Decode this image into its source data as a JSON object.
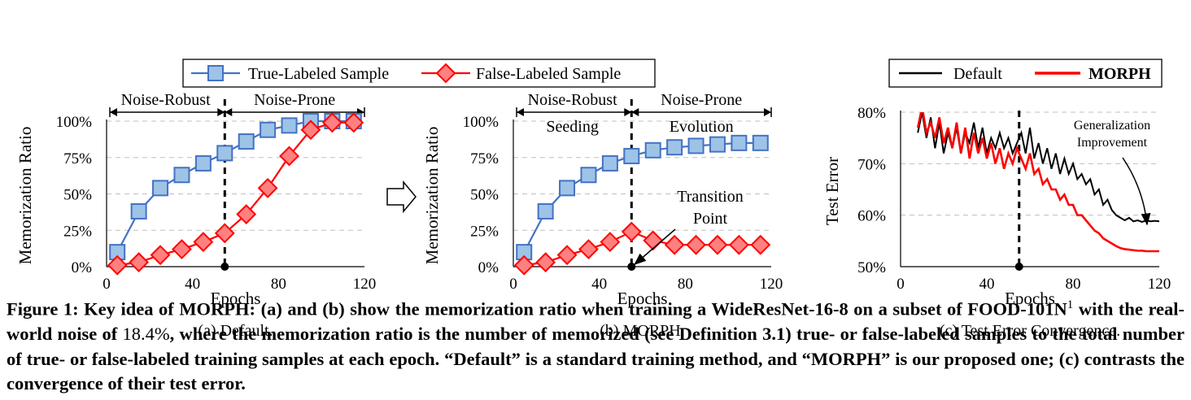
{
  "legend_main": {
    "true_label": "True-Labeled Sample",
    "false_label": "False-Labeled Sample"
  },
  "legend_c": {
    "default_label": "Default",
    "morph_label": "MORPH"
  },
  "colors": {
    "true": "#4472c4",
    "true_fill": "#9dc3e6",
    "false": "#ff0000",
    "false_fill": "#ff8080",
    "default": "#000000",
    "morph": "#ff0000"
  },
  "arrow_icon": "hollow-right-arrow",
  "chart_data": [
    {
      "id": "a",
      "type": "line",
      "subcaption": "(a) Default.",
      "xlabel": "Epochs",
      "ylabel": "Memorization Ratio",
      "xlim": [
        0,
        120
      ],
      "ylim": [
        0,
        100
      ],
      "xticks": [
        "0",
        "40",
        "80",
        "120"
      ],
      "yticks": [
        "0%",
        "25%",
        "50%",
        "75%",
        "100%"
      ],
      "grid": "horizontal dashed",
      "region_labels": [
        "Noise-Robust",
        "Noise-Prone"
      ],
      "divider_x": 55,
      "x": [
        5,
        15,
        25,
        35,
        45,
        55,
        65,
        75,
        85,
        95,
        105,
        115
      ],
      "series": [
        {
          "name": "True-Labeled Sample",
          "values": [
            10,
            38,
            54,
            63,
            71,
            78,
            86,
            94,
            97,
            100,
            100,
            100
          ]
        },
        {
          "name": "False-Labeled Sample",
          "values": [
            1,
            3,
            8,
            12,
            17,
            23,
            36,
            54,
            76,
            94,
            99,
            99
          ]
        }
      ]
    },
    {
      "id": "b",
      "type": "line",
      "subcaption": "(b) MORPH.",
      "xlabel": "Epochs",
      "ylabel": "Memorization Ratio",
      "xlim": [
        0,
        120
      ],
      "ylim": [
        0,
        100
      ],
      "xticks": [
        "0",
        "40",
        "80",
        "120"
      ],
      "yticks": [
        "0%",
        "25%",
        "50%",
        "75%",
        "100%"
      ],
      "grid": "horizontal dashed",
      "region_labels": [
        "Noise-Robust",
        "Noise-Prone"
      ],
      "phase_labels": [
        "Seeding",
        "Evolution"
      ],
      "divider_x": 55,
      "annotation": "Transition Point",
      "x": [
        5,
        15,
        25,
        35,
        45,
        55,
        65,
        75,
        85,
        95,
        105,
        115
      ],
      "series": [
        {
          "name": "True-Labeled Sample",
          "values": [
            10,
            38,
            54,
            63,
            71,
            76,
            80,
            82,
            83,
            84,
            85,
            85
          ]
        },
        {
          "name": "False-Labeled Sample",
          "values": [
            1,
            3,
            8,
            12,
            17,
            24,
            18,
            15,
            15,
            15,
            15,
            15
          ]
        }
      ]
    },
    {
      "id": "c",
      "type": "line",
      "subcaption": "(c) Test Error Convergence.",
      "xlabel": "Epochs",
      "ylabel": "Test Error",
      "xlim": [
        0,
        120
      ],
      "ylim": [
        50,
        80
      ],
      "xticks": [
        "0",
        "40",
        "80",
        "120"
      ],
      "yticks": [
        "50%",
        "60%",
        "70%",
        "80%"
      ],
      "grid": "horizontal dashed",
      "divider_x": 55,
      "annotation": "Generalization Improvement",
      "series": [
        {
          "name": "Default",
          "points": [
            [
              8,
              76
            ],
            [
              10,
              80
            ],
            [
              12,
              75
            ],
            [
              14,
              79
            ],
            [
              16,
              73
            ],
            [
              18,
              78
            ],
            [
              20,
              72
            ],
            [
              22,
              76
            ],
            [
              24,
              73
            ],
            [
              26,
              77
            ],
            [
              28,
              72
            ],
            [
              30,
              76
            ],
            [
              32,
              74
            ],
            [
              34,
              78
            ],
            [
              36,
              73
            ],
            [
              38,
              77
            ],
            [
              40,
              72
            ],
            [
              42,
              75
            ],
            [
              44,
              73
            ],
            [
              46,
              76
            ],
            [
              48,
              73
            ],
            [
              50,
              75
            ],
            [
              52,
              72
            ],
            [
              54,
              74
            ],
            [
              56,
              76
            ],
            [
              58,
              72
            ],
            [
              60,
              77
            ],
            [
              62,
              71
            ],
            [
              64,
              74
            ],
            [
              66,
              70
            ],
            [
              68,
              73
            ],
            [
              70,
              69
            ],
            [
              72,
              72
            ],
            [
              74,
              68
            ],
            [
              76,
              71
            ],
            [
              78,
              68
            ],
            [
              80,
              70
            ],
            [
              82,
              67
            ],
            [
              84,
              68
            ],
            [
              86,
              66
            ],
            [
              88,
              67
            ],
            [
              90,
              64
            ],
            [
              92,
              65
            ],
            [
              94,
              62
            ],
            [
              96,
              63
            ],
            [
              98,
              61
            ],
            [
              100,
              60
            ],
            [
              102,
              59.5
            ],
            [
              104,
              59
            ],
            [
              106,
              59.5
            ],
            [
              108,
              58.8
            ],
            [
              110,
              59
            ],
            [
              112,
              58.7
            ],
            [
              114,
              59
            ],
            [
              116,
              58.8
            ],
            [
              118,
              58.9
            ],
            [
              120,
              58.8
            ]
          ]
        },
        {
          "name": "MORPH",
          "points": [
            [
              8,
              77
            ],
            [
              10,
              81
            ],
            [
              12,
              76
            ],
            [
              14,
              78
            ],
            [
              16,
              75
            ],
            [
              18,
              79
            ],
            [
              20,
              74
            ],
            [
              22,
              77
            ],
            [
              24,
              73
            ],
            [
              26,
              78
            ],
            [
              28,
              72
            ],
            [
              30,
              77
            ],
            [
              32,
              71
            ],
            [
              34,
              76
            ],
            [
              36,
              72
            ],
            [
              38,
              75
            ],
            [
              40,
              71
            ],
            [
              42,
              74
            ],
            [
              44,
              70
            ],
            [
              46,
              73
            ],
            [
              48,
              69
            ],
            [
              50,
              72
            ],
            [
              52,
              70
            ],
            [
              54,
              73
            ],
            [
              56,
              71
            ],
            [
              58,
              69
            ],
            [
              60,
              72
            ],
            [
              62,
              68
            ],
            [
              64,
              69
            ],
            [
              66,
              66
            ],
            [
              68,
              67
            ],
            [
              70,
              65
            ],
            [
              72,
              65
            ],
            [
              74,
              63
            ],
            [
              76,
              64
            ],
            [
              78,
              62
            ],
            [
              80,
              62
            ],
            [
              82,
              60
            ],
            [
              84,
              60
            ],
            [
              86,
              59
            ],
            [
              88,
              58
            ],
            [
              90,
              57
            ],
            [
              92,
              56.5
            ],
            [
              94,
              55.5
            ],
            [
              96,
              55
            ],
            [
              98,
              54.5
            ],
            [
              100,
              54
            ],
            [
              102,
              53.6
            ],
            [
              104,
              53.4
            ],
            [
              106,
              53.3
            ],
            [
              108,
              53.2
            ],
            [
              110,
              53.1
            ],
            [
              112,
              53.1
            ],
            [
              114,
              53.0
            ],
            [
              116,
              53.0
            ],
            [
              118,
              53.0
            ],
            [
              120,
              53.0
            ]
          ]
        }
      ]
    }
  ],
  "caption": {
    "text1": "Figure 1: Key idea of MORPH: (a) and (b) show the memorization ratio when training a WideResNet-16-8 on a subset of FOOD-101N",
    "sup": "1",
    "text2": " with the real-world noise of ",
    "noise": "18.4%",
    "text3": ", where the memorization ratio is the number of memorized (see Definition 3.1) true- or false-labeled samples to the total number of true- or false-labeled training samples at each epoch. “Default” is a standard training method, and “MORPH” is our proposed one; (c) contrasts the convergence of their test error."
  }
}
